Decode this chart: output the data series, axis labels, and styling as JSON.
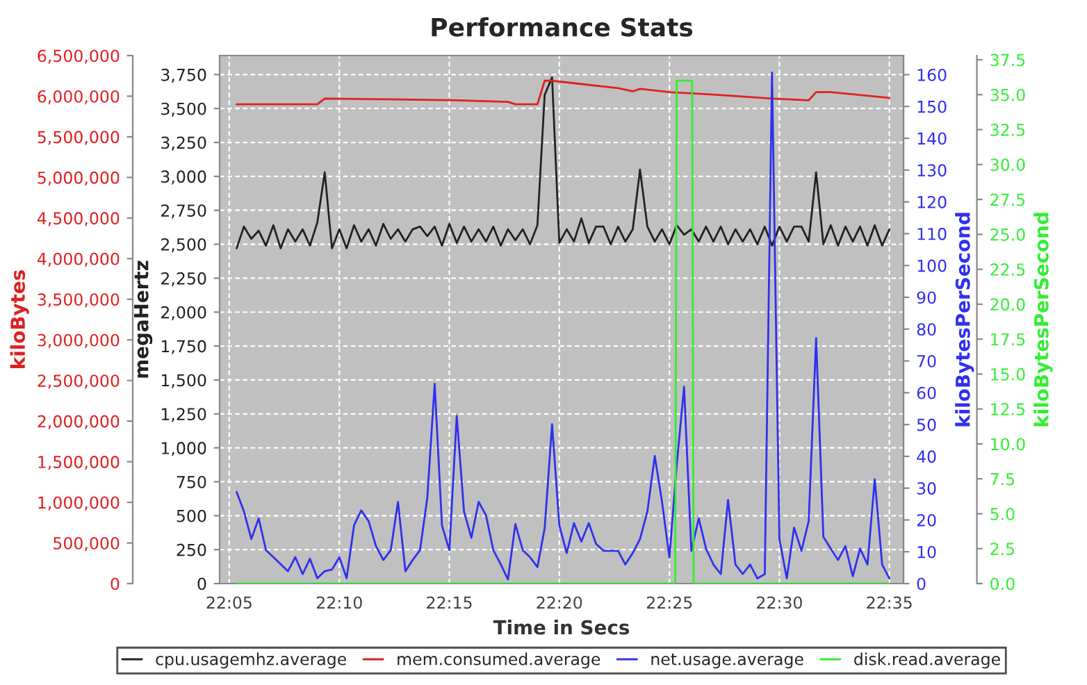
{
  "chart_data": [
    {
      "type": "line",
      "title": "Performance Stats",
      "xlabel": "Time in Secs",
      "ylabel": "megaHertz",
      "y2label": "kiloBytes",
      "y3label": "kiloBytesPerSecond",
      "x": [
        22.0889,
        22.0944,
        22.1,
        22.1056,
        22.1111,
        22.1167,
        22.1222,
        22.1278,
        22.1333,
        22.1389,
        22.1444,
        22.15,
        22.1556,
        22.1611,
        22.1667,
        22.1722,
        22.1778,
        22.1833,
        22.1889,
        22.1944,
        22.2,
        22.2056,
        22.2111,
        22.2167,
        22.2222,
        22.2278,
        22.2333,
        22.2389,
        22.2444,
        22.25,
        22.2556,
        22.2611,
        22.2667,
        22.2722,
        22.2778,
        22.2833,
        22.2889,
        22.2944,
        22.3,
        22.3056,
        22.3111,
        22.3167,
        22.3222,
        22.3278,
        22.3333,
        22.3389,
        22.3444,
        22.35,
        22.3556,
        22.3611,
        22.3667,
        22.3722,
        22.3778,
        22.3833,
        22.3889,
        22.3944,
        22.4,
        22.4056,
        22.4111,
        22.4167,
        22.4222,
        22.4278,
        22.4333,
        22.4389,
        22.4444,
        22.45,
        22.4556,
        22.4611,
        22.4667,
        22.4722,
        22.4778,
        22.4833,
        22.4889,
        22.4944,
        22.5,
        22.5056,
        22.5111,
        22.5167,
        22.5222,
        22.5278,
        22.5333,
        22.5389,
        22.5444,
        22.55,
        22.5556,
        22.5611,
        22.5667,
        22.5722,
        22.5778,
        22.5833
      ],
      "series": [
        {
          "name": "cpu.usagemhz.average",
          "color": "#222222",
          "axis": "y",
          "values": [
            2470,
            2630,
            2540,
            2600,
            2490,
            2640,
            2470,
            2610,
            2520,
            2610,
            2490,
            2660,
            3030,
            2470,
            2610,
            2470,
            2640,
            2520,
            2610,
            2490,
            2650,
            2540,
            2610,
            2520,
            2610,
            2630,
            2560,
            2630,
            2490,
            2650,
            2510,
            2630,
            2520,
            2610,
            2520,
            2630,
            2490,
            2610,
            2530,
            2610,
            2500,
            2640,
            3600,
            3730,
            2510,
            2610,
            2520,
            2690,
            2510,
            2630,
            2630,
            2500,
            2630,
            2520,
            2610,
            3050,
            2630,
            2520,
            2610,
            2500,
            2640,
            2570,
            2610,
            2520,
            2630,
            2520,
            2630,
            2500,
            2610,
            2520,
            2610,
            2500,
            2630,
            2490,
            2630,
            2520,
            2630,
            2630,
            2520,
            3030,
            2500,
            2640,
            2490,
            2630,
            2520,
            2630,
            2490,
            2640,
            2490,
            2610
          ]
        },
        {
          "name": "mem.consumed.average",
          "color": "#e02020",
          "axis": "y2",
          "x": [
            22.0889,
            22.15,
            22.1556,
            22.2111,
            22.2556,
            22.2944,
            22.3,
            22.3167,
            22.3222,
            22.3278,
            22.3444,
            22.3778,
            22.3889,
            22.3944,
            22.4167,
            22.45,
            22.4944,
            22.5222,
            22.5278,
            22.5389,
            22.5833
          ],
          "values": [
            5900000,
            5900000,
            5970000,
            5960000,
            5950000,
            5930000,
            5900000,
            5900000,
            6190000,
            6190000,
            6160000,
            6100000,
            6060000,
            6090000,
            6050000,
            6020000,
            5970000,
            5950000,
            6050000,
            6050000,
            5980000
          ]
        },
        {
          "name": "net.usage.average",
          "color": "#3030ee",
          "axis": "y3",
          "values": [
            28.8,
            22.7,
            14,
            20.5,
            10.5,
            8.3,
            6.1,
            3.9,
            8.3,
            3,
            7.8,
            1.7,
            3.9,
            4.4,
            8.3,
            1.7,
            18.3,
            23,
            19.6,
            11.8,
            7.4,
            10.5,
            25.7,
            3.9,
            7.4,
            10.5,
            27,
            62.8,
            18.3,
            10.5,
            52.7,
            22.7,
            14.4,
            25.7,
            21.4,
            10.5,
            6.1,
            1.3,
            18.7,
            10.5,
            8.3,
            5.2,
            17.4,
            50.1,
            18.3,
            9.6,
            19,
            13.2,
            19,
            12.5,
            10.3,
            10.3,
            10.3,
            6,
            9.6,
            14,
            22.7,
            40.1,
            25.6,
            8.2,
            37.2,
            61.9,
            10.3,
            20.5,
            11,
            6,
            3,
            26.3,
            6,
            3,
            6,
            1.6,
            3,
            160.7,
            14,
            1.6,
            17.6,
            10.3,
            19.7,
            77.2,
            14.7,
            11,
            7.4,
            11.8,
            2.3,
            11,
            6,
            32.8,
            6,
            1.6
          ]
        }
      ],
      "xlim": [
        22.076,
        22.594
      ],
      "xticks": [
        {
          "value": 22.0833,
          "label": "22:05"
        },
        {
          "value": 22.1667,
          "label": "22:10"
        },
        {
          "value": 22.25,
          "label": "22:15"
        },
        {
          "value": 22.3333,
          "label": "22:20"
        },
        {
          "value": 22.4167,
          "label": "22:25"
        },
        {
          "value": 22.5,
          "label": "22:30"
        },
        {
          "value": 22.5833,
          "label": "22:35"
        }
      ],
      "ylim": [
        0,
        3890
      ],
      "yticks": [
        0,
        250,
        500,
        750,
        {
          "value": 1000,
          "label": "1,000"
        },
        {
          "value": 1250,
          "label": "1,250"
        },
        {
          "value": 1500,
          "label": "1,500"
        },
        {
          "value": 1750,
          "label": "1,750"
        },
        {
          "value": 2000,
          "label": "2,000"
        },
        {
          "value": 2250,
          "label": "2,250"
        },
        {
          "value": 2500,
          "label": "2,500"
        },
        {
          "value": 2750,
          "label": "2,750"
        },
        {
          "value": 3000,
          "label": "3,000"
        },
        {
          "value": 3250,
          "label": "3,250"
        },
        {
          "value": 3500,
          "label": "3,500"
        },
        {
          "value": 3750,
          "label": "3,750"
        }
      ],
      "y2lim": [
        0,
        6500000
      ],
      "y2ticks": [
        0,
        {
          "value": 500000,
          "label": "500,000"
        },
        {
          "value": 1000000,
          "label": "1,000,000"
        },
        {
          "value": 1500000,
          "label": "1,500,000"
        },
        {
          "value": 2000000,
          "label": "2,000,000"
        },
        {
          "value": 2500000,
          "label": "2,500,000"
        },
        {
          "value": 3000000,
          "label": "3,000,000"
        },
        {
          "value": 3500000,
          "label": "3,500,000"
        },
        {
          "value": 4000000,
          "label": "4,000,000"
        },
        {
          "value": 4500000,
          "label": "4,500,000"
        },
        {
          "value": 5000000,
          "label": "5,000,000"
        },
        {
          "value": 5500000,
          "label": "5,500,000"
        },
        {
          "value": 6000000,
          "label": "6,000,000"
        },
        {
          "value": 6500000,
          "label": "6,500,000"
        }
      ],
      "y3lim": [
        0,
        166
      ],
      "y3ticks": [
        0,
        10,
        20,
        30,
        40,
        50,
        60,
        70,
        80,
        90,
        100,
        110,
        120,
        130,
        140,
        150,
        160
      ],
      "grid": true,
      "legend": "bottom"
    },
    {
      "type": "line",
      "ylabel": "kiloBytesPerSecond",
      "tick_labels": "y",
      "series": [
        {
          "name": "disk.read.average",
          "color": "#33ee33",
          "x": [
            22.0889,
            22.4211,
            22.4222,
            22.4339,
            22.435,
            22.5833
          ],
          "values": [
            0,
            0,
            36,
            36,
            0,
            0
          ]
        }
      ],
      "xlim": [
        22.076,
        22.594
      ],
      "ylim": [
        0,
        37.8
      ],
      "yticks": [
        {
          "value": 0,
          "label": "0.0"
        },
        2.5,
        {
          "value": 5,
          "label": "5.0"
        },
        7.5,
        {
          "value": 10,
          "label": "10.0"
        },
        12.5,
        {
          "value": 15,
          "label": "15.0"
        },
        17.5,
        {
          "value": 20,
          "label": "20.0"
        },
        22.5,
        {
          "value": 25,
          "label": "25.0"
        },
        27.5,
        {
          "value": 30,
          "label": "30.0"
        },
        32.5,
        {
          "value": 35,
          "label": "35.0"
        },
        37.5
      ]
    }
  ]
}
